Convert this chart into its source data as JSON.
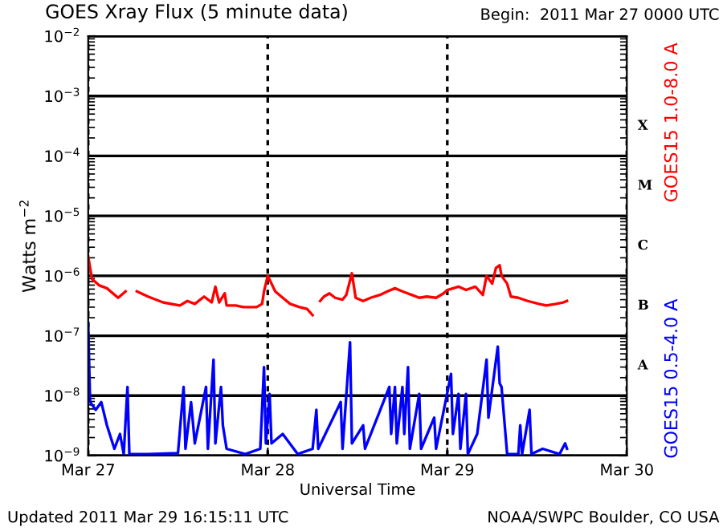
{
  "chart_data": {
    "type": "line",
    "title": "GOES Xray Flux (5 minute data)",
    "xlabel": "Universal Time",
    "ylabel": "Watts m$^{−2}$",
    "annotations": [
      "Begin:  2011 Mar 27 0000 UTC",
      "Updated 2011 Mar 29 16:15:11 UTC",
      "NOAA/SWPC Boulder, CO USA",
      "A",
      "B",
      "C",
      "M",
      "X"
    ],
    "log": "y",
    "grid": true,
    "legend": false,
    "marker": "none",
    "line_style": "solid",
    "xlim": [
      "2011-03-27",
      "2011-03-30"
    ],
    "xticks": [
      {
        "value": "2011-03-27",
        "label": "Mar 27"
      },
      {
        "value": "2011-03-28",
        "label": "Mar 28"
      },
      {
        "value": "2011-03-29",
        "label": "Mar 29"
      },
      {
        "value": "2011-03-30",
        "label": "Mar 30"
      }
    ],
    "ylim": [
      1e-09,
      0.01
    ],
    "yticks": [
      {
        "value": 1e-09,
        "label": "10$^{−9}$"
      },
      {
        "value": 1e-08,
        "label": "10$^{−8}$"
      },
      {
        "value": 1e-07,
        "label": "10$^{−7}$"
      },
      {
        "value": 1e-06,
        "label": "10$^{−6}$"
      },
      {
        "value": 1e-05,
        "label": "10$^{−5}$"
      },
      {
        "value": 0.0001,
        "label": "10$^{−4}$"
      },
      {
        "value": 0.001,
        "label": "10$^{−3}$"
      },
      {
        "value": 0.01,
        "label": "10$^{−2}$"
      }
    ],
    "series": [
      {
        "name": "GOES15 1.0-8.0 A",
        "color": "#ff0000",
        "x": [
          "2011-03-27T00:00",
          "2011-03-27T00:30",
          "2011-03-27T01:30",
          "2011-03-27T02:30",
          "2011-03-27T04:00",
          "2011-03-27T05:00",
          "2011-03-27T05:15",
          "2011-03-27T06:30",
          "2011-03-27T08:00",
          "2011-03-27T10:00",
          "2011-03-27T12:15",
          "2011-03-27T13:15",
          "2011-03-27T14:15",
          "2011-03-27T15:30",
          "2011-03-27T16:30",
          "2011-03-27T17:00",
          "2011-03-27T17:30",
          "2011-03-27T18:15",
          "2011-03-27T18:30",
          "2011-03-27T19:45",
          "2011-03-27T20:45",
          "2011-03-27T22:30",
          "2011-03-27T23:15",
          "2011-03-27T23:30",
          "2011-03-28T00:00",
          "2011-03-28T01:00",
          "2011-03-28T02:00",
          "2011-03-28T03:00",
          "2011-03-28T04:15",
          "2011-03-28T05:15",
          "2011-03-28T06:00",
          "2011-03-28T06:15",
          "2011-03-28T07:00",
          "2011-03-28T07:30",
          "2011-03-28T08:15",
          "2011-03-28T09:00",
          "2011-03-28T10:00",
          "2011-03-28T10:30",
          "2011-03-28T11:15",
          "2011-03-28T11:45",
          "2011-03-28T12:45",
          "2011-03-28T13:45",
          "2011-03-28T15:00",
          "2011-03-28T16:00",
          "2011-03-28T17:00",
          "2011-03-28T18:00",
          "2011-03-28T19:15",
          "2011-03-28T20:15",
          "2011-03-28T21:15",
          "2011-03-28T22:30",
          "2011-03-28T23:30",
          "2011-03-29T00:00",
          "2011-03-29T01:30",
          "2011-03-29T02:30",
          "2011-03-29T03:45",
          "2011-03-29T04:45",
          "2011-03-29T05:15",
          "2011-03-29T06:00",
          "2011-03-29T06:30",
          "2011-03-29T07:00",
          "2011-03-29T07:15",
          "2011-03-29T08:00",
          "2011-03-29T08:30",
          "2011-03-29T09:30",
          "2011-03-29T10:45",
          "2011-03-29T12:15",
          "2011-03-29T13:15",
          "2011-03-29T14:30",
          "2011-03-29T15:30",
          "2011-03-29T16:00"
        ],
        "values": [
          2.1e-06,
          8.9e-07,
          6.9e-07,
          6.2e-07,
          4.3e-07,
          5.5e-07,
          null,
          5.5e-07,
          4.5e-07,
          3.6e-07,
          3.2e-07,
          3.8e-07,
          3.4e-07,
          4.5e-07,
          3.6e-07,
          6.6e-07,
          3.6e-07,
          5.1e-07,
          3.2e-07,
          3.2e-07,
          3e-07,
          3e-07,
          3.4e-07,
          5.5e-07,
          1e-06,
          5.5e-07,
          4.3e-07,
          3.4e-07,
          3e-07,
          2.8e-07,
          2.2e-07,
          null,
          3.8e-07,
          4.5e-07,
          5.1e-07,
          4.3e-07,
          4e-07,
          4.8e-07,
          1.1e-06,
          4.3e-07,
          3.8e-07,
          4.3e-07,
          4.8e-07,
          5.5e-07,
          6.2e-07,
          5.5e-07,
          4.8e-07,
          4.3e-07,
          4.5e-07,
          4.3e-07,
          5.1e-07,
          5.8e-07,
          6.6e-07,
          5.8e-07,
          6.6e-07,
          4.8e-07,
          1e-06,
          7.4e-07,
          1.35e-06,
          1.5e-06,
          1e-06,
          7.4e-07,
          4.5e-07,
          4.3e-07,
          3.8e-07,
          3.4e-07,
          3.2e-07,
          3.4e-07,
          3.6e-07,
          3.8e-07
        ]
      },
      {
        "name": "GOES15 0.5-4.0 A",
        "color": "#0000ff",
        "x": [
          "2011-03-27T00:00",
          "2011-03-27T00:15",
          "2011-03-27T01:00",
          "2011-03-27T01:45",
          "2011-03-27T02:30",
          "2011-03-27T03:30",
          "2011-03-27T04:15",
          "2011-03-27T04:45",
          "2011-03-27T05:15",
          "2011-03-27T05:30",
          "2011-03-27T08:00",
          "2011-03-27T12:00",
          "2011-03-27T12:45",
          "2011-03-27T13:00",
          "2011-03-27T13:45",
          "2011-03-27T14:15",
          "2011-03-27T15:45",
          "2011-03-27T16:00",
          "2011-03-27T16:45",
          "2011-03-27T17:00",
          "2011-03-27T17:45",
          "2011-03-27T18:00",
          "2011-03-27T18:30",
          "2011-03-27T21:00",
          "2011-03-27T23:00",
          "2011-03-27T23:30",
          "2011-03-27T23:45",
          "2011-03-28T00:15",
          "2011-03-28T00:30",
          "2011-03-28T02:00",
          "2011-03-28T04:00",
          "2011-03-28T06:00",
          "2011-03-28T06:30",
          "2011-03-28T06:45",
          "2011-03-28T09:45",
          "2011-03-28T10:00",
          "2011-03-28T11:00",
          "2011-03-28T11:15",
          "2011-03-28T12:45",
          "2011-03-28T13:00",
          "2011-03-28T16:15",
          "2011-03-28T16:30",
          "2011-03-28T17:00",
          "2011-03-28T17:15",
          "2011-03-28T18:00",
          "2011-03-28T18:15",
          "2011-03-28T18:45",
          "2011-03-28T19:00",
          "2011-03-28T20:15",
          "2011-03-28T20:30",
          "2011-03-28T22:15",
          "2011-03-28T22:30",
          "2011-03-29T00:30",
          "2011-03-29T00:45",
          "2011-03-29T01:30",
          "2011-03-29T01:45",
          "2011-03-29T02:30",
          "2011-03-29T02:45",
          "2011-03-29T04:00",
          "2011-03-29T05:15",
          "2011-03-29T05:30",
          "2011-03-29T06:45",
          "2011-03-29T07:00",
          "2011-03-29T07:15",
          "2011-03-29T08:00",
          "2011-03-29T09:30",
          "2011-03-29T09:45",
          "2011-03-29T10:00",
          "2011-03-29T11:00",
          "2011-03-29T11:15",
          "2011-03-29T12:45",
          "2011-03-29T15:00",
          "2011-03-29T15:45",
          "2011-03-29T16:00"
        ],
        "values": [
          1.6e-07,
          7.8e-09,
          5.8e-09,
          7.8e-09,
          3.2e-09,
          1.3e-09,
          2.3e-09,
          1.06e-09,
          1.4e-08,
          1.06e-09,
          1.06e-09,
          1.1e-09,
          1.4e-08,
          1.3e-09,
          7.8e-09,
          1.6e-09,
          1.4e-08,
          1.3e-09,
          4e-08,
          1.6e-09,
          1.4e-08,
          3.2e-09,
          1.3e-09,
          1.06e-09,
          1.3e-09,
          3e-08,
          1.6e-09,
          1.07e-08,
          1.6e-09,
          2.3e-09,
          1.06e-09,
          1.3e-09,
          5.8e-09,
          1.3e-09,
          7.8e-09,
          1.3e-09,
          7.8e-08,
          1.6e-09,
          3.2e-09,
          1.3e-09,
          1.4e-08,
          2.3e-09,
          1.4e-08,
          1.6e-09,
          1.4e-08,
          2.3e-09,
          3e-08,
          1.3e-09,
          1.07e-08,
          1.3e-09,
          4.3e-09,
          1.3e-09,
          2.3e-08,
          2.3e-09,
          1.07e-08,
          1.3e-09,
          1.07e-08,
          1.06e-09,
          2.3e-09,
          4e-08,
          4.3e-09,
          6.6e-08,
          1.6e-08,
          1.4e-08,
          1.06e-09,
          1.06e-09,
          3.2e-09,
          1.06e-09,
          5.8e-09,
          1.06e-09,
          1.3e-09,
          1.06e-09,
          1.6e-09,
          1.3e-09
        ]
      }
    ]
  }
}
